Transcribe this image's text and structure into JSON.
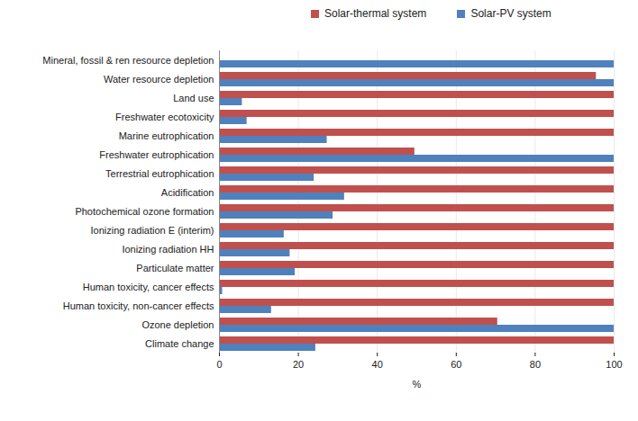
{
  "chart_data": {
    "type": "bar",
    "orientation": "horizontal",
    "categories": [
      "Mineral, fossil & ren resource depletion",
      "Water resource depletion",
      "Land use",
      "Freshwater ecotoxicity",
      "Marine eutrophication",
      "Freshwater eutrophication",
      "Terrestrial eutrophication",
      "Acidification",
      "Photochemical ozone formation",
      "Ionizing radiation E (interim)",
      "Ionizing radiation HH",
      "Particulate matter",
      "Human toxicity, cancer effects",
      "Human toxicity, non-cancer effects",
      "Ozone depletion",
      "Climate change"
    ],
    "series": [
      {
        "name": "Solar-thermal system",
        "color": "#C0504D",
        "values": [
          0,
          95.5,
          100,
          100,
          100,
          49.5,
          100,
          100,
          100,
          100,
          100,
          100,
          100,
          100,
          70.5,
          100
        ]
      },
      {
        "name": "Solar-PV system",
        "color": "#4F81BD",
        "values": [
          100,
          100,
          5.8,
          7,
          27.3,
          100,
          24,
          31.7,
          28.8,
          16.4,
          17.9,
          19.2,
          0.8,
          13.2,
          100,
          24.4
        ]
      }
    ],
    "xlabel": "%",
    "xlim": [
      0,
      100
    ],
    "xticks": [
      0,
      20,
      40,
      60,
      80,
      100
    ],
    "grid": true,
    "legend": "top"
  }
}
